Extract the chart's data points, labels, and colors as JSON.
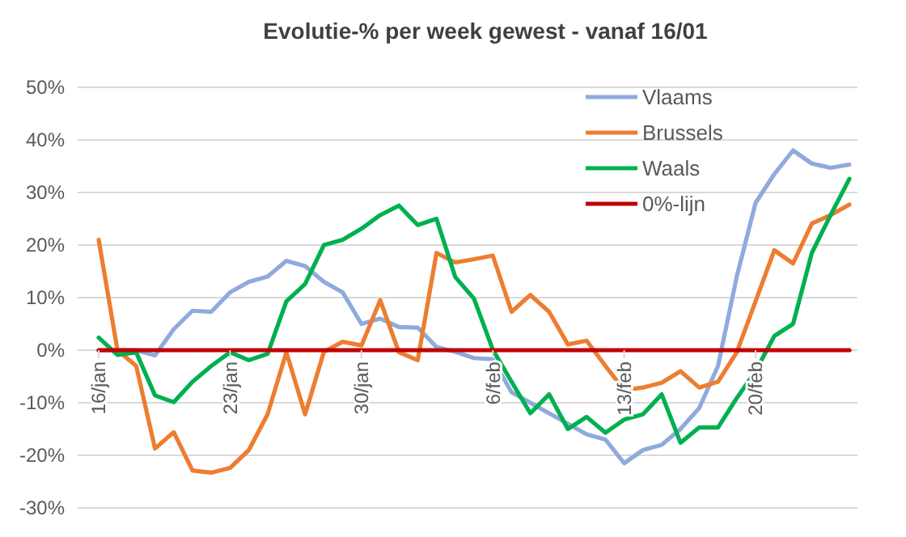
{
  "chart_data": {
    "type": "line",
    "title": "Evolutie-% per week gewest - vanaf 16/01",
    "categories": [
      "16/jan",
      null,
      null,
      null,
      null,
      null,
      null,
      "23/jan",
      null,
      null,
      null,
      null,
      null,
      null,
      "30/jan",
      null,
      null,
      null,
      null,
      null,
      null,
      "6/feb",
      null,
      null,
      null,
      null,
      null,
      null,
      "13/feb",
      null,
      null,
      null,
      null,
      null,
      null,
      "20/feb",
      null,
      null,
      null,
      null,
      null
    ],
    "series": [
      {
        "name": "Vlaams",
        "color": "#8faadc",
        "values": [
          0,
          0,
          0,
          -1,
          4,
          7.5,
          7.3,
          11,
          13,
          14,
          17,
          16,
          13,
          11,
          5,
          6,
          4.4,
          4.3,
          0.6,
          -0.3,
          -1.5,
          -1.7,
          -8,
          -10,
          -12,
          -14,
          -16,
          -17,
          -21.5,
          -19,
          -18,
          -15,
          -11,
          -3,
          14,
          28,
          33.5,
          38,
          35.5,
          34.7,
          35.3
        ]
      },
      {
        "name": "Brussels",
        "color": "#ed7d31",
        "values": [
          21,
          0,
          -3,
          -18.7,
          -15.6,
          -22.9,
          -23.3,
          -22.4,
          -19,
          -12.2,
          -0.4,
          -12.2,
          -0.3,
          1.6,
          0.9,
          9.5,
          -0.4,
          -1.9,
          18.5,
          16.7,
          17.3,
          18,
          7.3,
          10.5,
          7.3,
          1.1,
          1.8,
          -3,
          -7.6,
          -7.1,
          -6.2,
          -4,
          -7.1,
          -6,
          -0.4,
          9.3,
          19,
          16.5,
          24.1,
          25.7,
          27.7
        ]
      },
      {
        "name": "Waals",
        "color": "#00b050",
        "values": [
          2.4,
          -0.9,
          -0.4,
          -8.6,
          -9.9,
          -6,
          -3,
          -0.4,
          -1.9,
          -0.7,
          9.3,
          12.6,
          20,
          21,
          23.1,
          25.7,
          27.5,
          23.8,
          25,
          13.9,
          9.8,
          0.1,
          -6,
          -12,
          -8.4,
          -15,
          -12.7,
          -15.7,
          -13.2,
          -12.2,
          -8.4,
          -17.6,
          -14.7,
          -14.7,
          -9.1,
          -4,
          2.7,
          5,
          18.5,
          25.7,
          32.6
        ]
      },
      {
        "name": "0%-lijn",
        "color": "#c00000",
        "values": [
          0,
          0,
          0,
          0,
          0,
          0,
          0,
          0,
          0,
          0,
          0,
          0,
          0,
          0,
          0,
          0,
          0,
          0,
          0,
          0,
          0,
          0,
          0,
          0,
          0,
          0,
          0,
          0,
          0,
          0,
          0,
          0,
          0,
          0,
          0,
          0,
          0,
          0,
          0,
          0,
          0
        ]
      }
    ],
    "ylim": [
      -30,
      50
    ],
    "yticks": [
      {
        "value": -30,
        "label": "-30%"
      },
      {
        "value": -20,
        "label": "-20%"
      },
      {
        "value": -10,
        "label": "-10%"
      },
      {
        "value": 0,
        "label": "0%"
      },
      {
        "value": 10,
        "label": "10%"
      },
      {
        "value": 20,
        "label": "20%"
      },
      {
        "value": 30,
        "label": "30%"
      },
      {
        "value": 40,
        "label": "40%"
      },
      {
        "value": 50,
        "label": "50%"
      }
    ],
    "grid": "y",
    "legend": "top right",
    "marker": "none",
    "line_style": "solid"
  }
}
